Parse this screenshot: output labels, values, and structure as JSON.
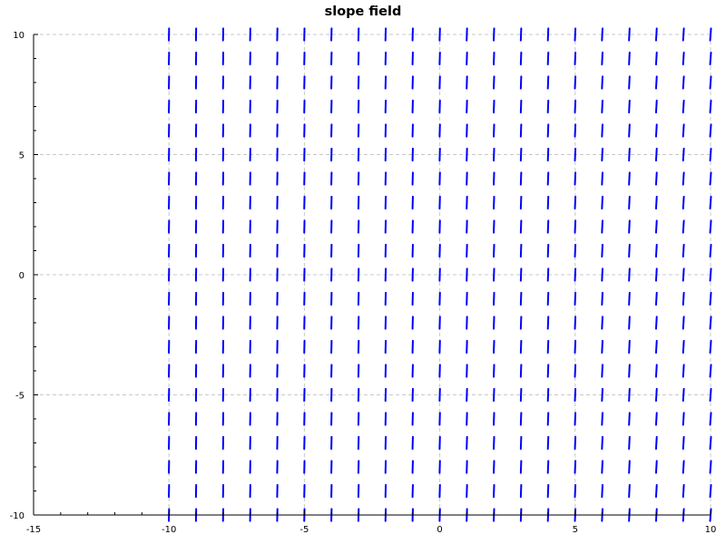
{
  "chart_data": {
    "type": "slope-field",
    "title": "slope field",
    "xlabel": "",
    "ylabel": "",
    "xlim": [
      -15,
      10
    ],
    "ylim": [
      -10,
      10
    ],
    "grid": true,
    "x_major_ticks": [
      -15,
      -10,
      -5,
      0,
      5,
      10
    ],
    "y_major_ticks": [
      -10,
      -5,
      0,
      5,
      10
    ],
    "x_tick_labels": [
      "-15",
      "-10",
      "-5",
      "0",
      "5",
      "10"
    ],
    "y_tick_labels": [
      "-10",
      "-5",
      "0",
      "5",
      "10"
    ],
    "field": {
      "x_values": [
        -10,
        -9,
        -8,
        -7,
        -6,
        -5,
        -4,
        -3,
        -2,
        -1,
        0,
        1,
        2,
        3,
        4,
        5,
        6,
        7,
        8,
        9,
        10
      ],
      "y_values": [
        -10,
        -9,
        -8,
        -7,
        -6,
        -5,
        -4,
        -3,
        -2,
        -1,
        0,
        1,
        2,
        3,
        4,
        5,
        6,
        7,
        8,
        9,
        10
      ],
      "segment_length": 0.5,
      "direction": "near-vertical, steepest at left",
      "color": "#0000ff"
    }
  }
}
